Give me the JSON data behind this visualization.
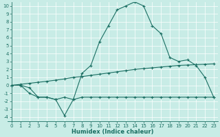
{
  "xlabel": "Humidex (Indice chaleur)",
  "xlim": [
    -0.5,
    23.5
  ],
  "ylim": [
    -4.5,
    10.5
  ],
  "yticks": [
    -4,
    -3,
    -2,
    -1,
    0,
    1,
    2,
    3,
    4,
    5,
    6,
    7,
    8,
    9,
    10
  ],
  "xticks": [
    0,
    1,
    2,
    3,
    4,
    5,
    6,
    7,
    8,
    9,
    10,
    11,
    12,
    13,
    14,
    15,
    16,
    17,
    18,
    19,
    20,
    21,
    22,
    23
  ],
  "bg_color": "#c8ece6",
  "grid_color": "#aad8d0",
  "line_color": "#1a6e62",
  "line1_x": [
    0,
    1,
    2,
    3,
    4,
    5,
    6,
    7,
    8,
    9,
    10,
    11,
    12,
    13,
    14,
    15,
    16,
    17,
    18,
    19,
    20,
    21,
    22,
    23
  ],
  "line1_y": [
    0,
    0,
    -1,
    -1.5,
    -1.5,
    -1.8,
    -3.8,
    -1.8,
    1.5,
    2.5,
    5.5,
    7.5,
    9.5,
    10.0,
    10.5,
    10.0,
    7.5,
    6.5,
    3.5,
    3.0,
    3.2,
    2.5,
    1.0,
    -1.5
  ],
  "line2_x": [
    0,
    1,
    2,
    3,
    4,
    5,
    6,
    7,
    8,
    9,
    10,
    11,
    12,
    13,
    14,
    15,
    16,
    17,
    18,
    19,
    20,
    21,
    22,
    23
  ],
  "line2_y": [
    0,
    0.12,
    0.25,
    0.38,
    0.5,
    0.65,
    0.8,
    1.0,
    1.1,
    1.25,
    1.4,
    1.55,
    1.7,
    1.85,
    2.0,
    2.1,
    2.2,
    2.3,
    2.4,
    2.5,
    2.55,
    2.6,
    2.65,
    2.7
  ],
  "line3_x": [
    0,
    1,
    2,
    3,
    4,
    5,
    6,
    7,
    8,
    9,
    10,
    11,
    12,
    13,
    14,
    15,
    16,
    17,
    18,
    19,
    20,
    21,
    22,
    23
  ],
  "line3_y": [
    0,
    0.0,
    -0.3,
    -1.5,
    -1.5,
    -1.8,
    -1.5,
    -1.8,
    -1.5,
    -1.5,
    -1.5,
    -1.5,
    -1.5,
    -1.5,
    -1.5,
    -1.5,
    -1.5,
    -1.5,
    -1.5,
    -1.5,
    -1.5,
    -1.5,
    -1.5,
    -1.5
  ]
}
